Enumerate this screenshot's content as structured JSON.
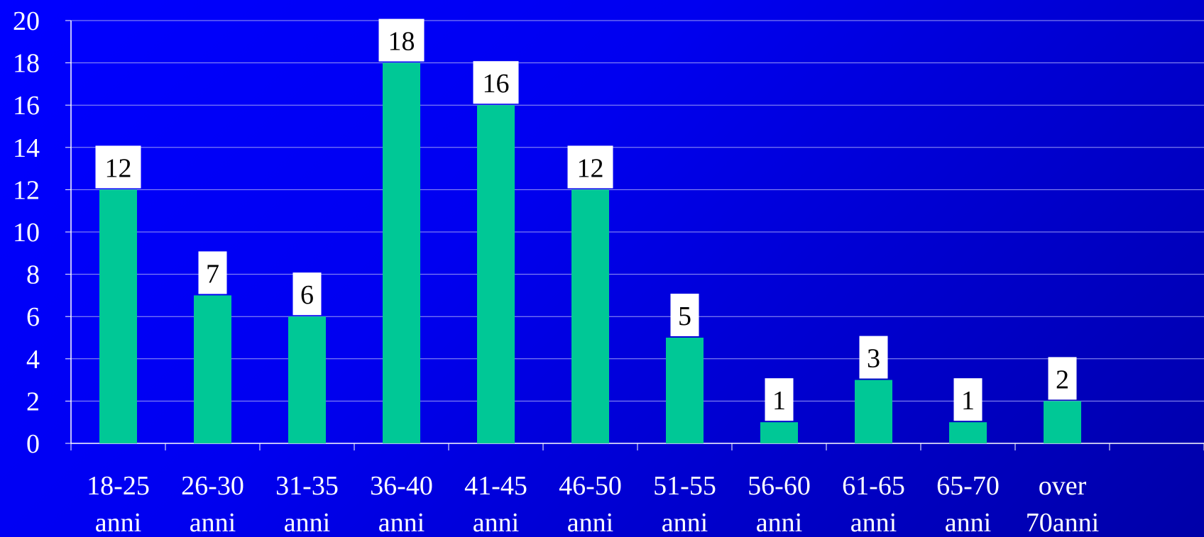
{
  "chart_data": {
    "type": "bar",
    "categories": [
      [
        "18-25",
        "anni"
      ],
      [
        "26-30",
        "anni"
      ],
      [
        "31-35",
        "anni"
      ],
      [
        "36-40",
        "anni"
      ],
      [
        "41-45",
        "anni"
      ],
      [
        "46-50",
        "anni"
      ],
      [
        "51-55",
        "anni"
      ],
      [
        "56-60",
        "anni"
      ],
      [
        "61-65",
        "anni"
      ],
      [
        "65-70",
        "anni"
      ],
      [
        "over",
        "70anni"
      ]
    ],
    "values": [
      12,
      7,
      6,
      18,
      16,
      12,
      5,
      1,
      3,
      1,
      2
    ],
    "data_labels": [
      "12",
      "7",
      "6",
      "18",
      "16",
      "12",
      "5",
      "1",
      "3",
      "1",
      "2"
    ],
    "y_ticks": [
      "0",
      "2",
      "4",
      "6",
      "8",
      "10",
      "12",
      "14",
      "16",
      "18",
      "20"
    ],
    "ylim": [
      0,
      20
    ],
    "title": "",
    "xlabel": "",
    "ylabel": "",
    "grid": true,
    "legend": "none",
    "colors": {
      "bar": "#00c896",
      "grid": "#9a9af5",
      "axis": "#ffffff",
      "label_box": "#ffffff",
      "label_text": "#000000"
    }
  }
}
